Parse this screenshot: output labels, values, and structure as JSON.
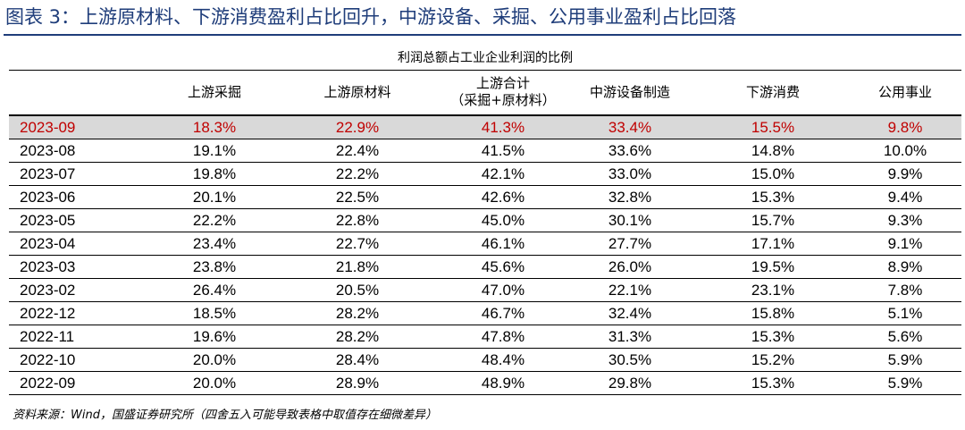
{
  "title": "图表 3：上游原材料、下游消费盈利占比回升，中游设备、采掘、公用事业盈利占比回落",
  "table": {
    "caption": "利润总额占工业企业利润的比例",
    "headers": {
      "col1": "上游采掘",
      "col2": "上游原材料",
      "col3_line1": "上游合计",
      "col3_line2": "（采掘+原材料）",
      "col4": "中游设备制造",
      "col5": "下游消费",
      "col6": "公用事业"
    },
    "rows": [
      [
        "2023-09",
        "18.3%",
        "22.9%",
        "41.3%",
        "33.4%",
        "15.5%",
        "9.8%"
      ],
      [
        "2023-08",
        "19.1%",
        "22.4%",
        "41.5%",
        "33.6%",
        "14.8%",
        "10.0%"
      ],
      [
        "2023-07",
        "19.8%",
        "22.2%",
        "42.1%",
        "33.0%",
        "15.0%",
        "9.9%"
      ],
      [
        "2023-06",
        "20.1%",
        "22.5%",
        "42.6%",
        "32.8%",
        "15.3%",
        "9.4%"
      ],
      [
        "2023-05",
        "22.2%",
        "22.8%",
        "45.0%",
        "30.1%",
        "15.7%",
        "9.3%"
      ],
      [
        "2023-04",
        "23.4%",
        "22.7%",
        "46.1%",
        "27.7%",
        "17.1%",
        "9.1%"
      ],
      [
        "2023-03",
        "23.8%",
        "21.8%",
        "45.6%",
        "26.0%",
        "19.5%",
        "8.9%"
      ],
      [
        "2023-02",
        "26.4%",
        "20.5%",
        "47.0%",
        "22.1%",
        "23.1%",
        "7.8%"
      ],
      [
        "2022-12",
        "18.5%",
        "28.2%",
        "46.7%",
        "32.4%",
        "15.8%",
        "5.1%"
      ],
      [
        "2022-11",
        "19.6%",
        "28.2%",
        "47.8%",
        "31.3%",
        "15.3%",
        "5.6%"
      ],
      [
        "2022-10",
        "20.0%",
        "28.4%",
        "48.4%",
        "30.5%",
        "15.2%",
        "5.9%"
      ],
      [
        "2022-09",
        "20.0%",
        "28.9%",
        "48.9%",
        "29.8%",
        "15.3%",
        "5.9%"
      ]
    ],
    "highlight_row_index": 0,
    "highlight_text_color": "#c00000",
    "highlight_bg_color": "#d9d9d9"
  },
  "source": "资料来源：Wind，国盛证券研究所（四舍五入可能导致表格中取值存在细微差异）",
  "colors": {
    "title": "#1f3d7a",
    "rule": "#1f3d7a"
  }
}
